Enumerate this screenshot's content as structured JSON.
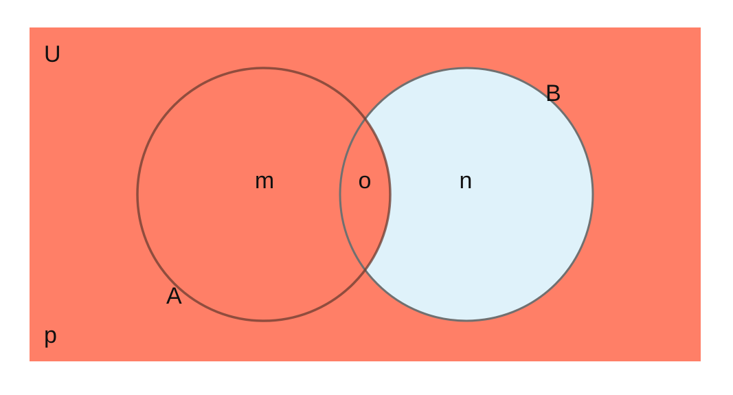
{
  "diagram": {
    "type": "venn",
    "shaded_region": "complement of B",
    "colors": {
      "shaded": "#ff7f67",
      "unshaded": "#dff2fa",
      "outline_a": "#6b3c30",
      "outline_b": "#707070"
    },
    "universe": {
      "label": "U",
      "region_label": "p"
    },
    "set_a": {
      "label": "A",
      "region_label": "m"
    },
    "set_b": {
      "label": "B",
      "region_label": "n"
    },
    "intersection": {
      "region_label": "o"
    }
  }
}
